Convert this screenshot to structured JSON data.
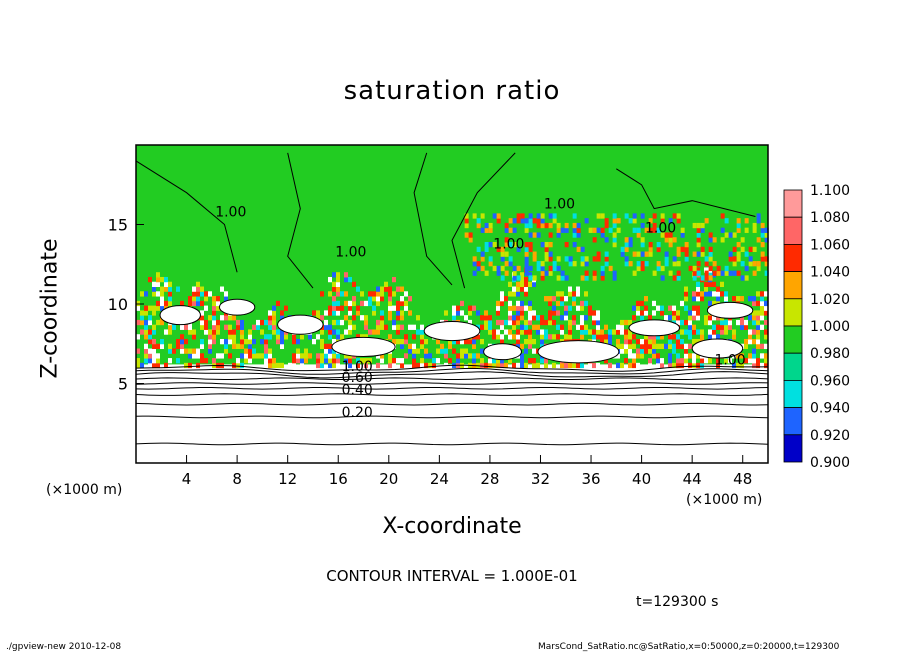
{
  "colors": {
    "1.100": "#ff9a9a",
    "1.080": "#ff6666",
    "1.060": "#ff2a00",
    "1.040": "#ffa500",
    "1.020": "#c8e600",
    "1.000": "#22cc22",
    "0.980": "#00d68c",
    "0.960": "#00e0e0",
    "0.940": "#1e64ff",
    "0.920": "#0000c8",
    "0.900": "#7000c0"
  },
  "chart_data": {
    "type": "heatmap",
    "title": "saturation ratio",
    "xlabel": "X-coordinate",
    "ylabel": "Z-coordinate",
    "x_unit_left": "(×1000 m)",
    "x_unit_right": "(×1000 m)",
    "xlim": [
      0,
      50
    ],
    "ylim": [
      0,
      20
    ],
    "x_ticks": [
      "4",
      "8",
      "12",
      "16",
      "20",
      "24",
      "28",
      "32",
      "36",
      "40",
      "44",
      "48"
    ],
    "y_ticks": [
      "5",
      "10",
      "15"
    ],
    "colorbar": {
      "levels": [
        "1.100",
        "1.080",
        "1.060",
        "1.040",
        "1.020",
        "1.000",
        "0.980",
        "0.960",
        "0.940",
        "0.920",
        "0.900"
      ],
      "range": [
        0.9,
        1.1
      ]
    },
    "contour_labels": [
      "1.00",
      "1.00",
      "1.00",
      "1.00",
      "1.00",
      "1.00",
      "1.00",
      "0.80",
      "0.60",
      "0.40",
      "0.20"
    ],
    "contour_interval": "CONTOUR INTERVAL = 1.000E-01",
    "time": "t=129300 s",
    "footer_left": "./gpview-new  2010-12-08",
    "footer_right": "MarsCond_SatRatio.nc@SatRatio,x=0:50000,z=0:20000,t=129300"
  }
}
